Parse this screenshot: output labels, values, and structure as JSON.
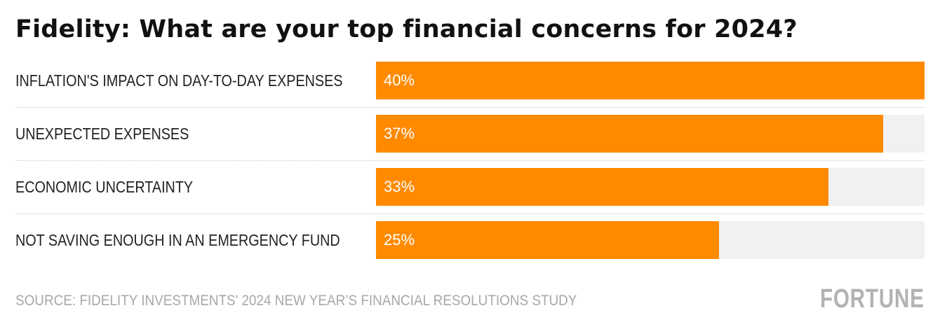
{
  "title": "Fidelity: What are your top financial concerns for 2024?",
  "source": "SOURCE: FIDELITY INVESTMENTS' 2024 NEW YEAR’S FINANCIAL RESOLUTIONS STUDY",
  "logo": "FORTUNE",
  "colors": {
    "bar": "#ff8a00",
    "track": "#f1f1f1",
    "source": "#a8a8a8"
  },
  "chart_data": {
    "type": "bar",
    "orientation": "horizontal",
    "categories": [
      "INFLATION'S IMPACT ON DAY-TO-DAY EXPENSES",
      "UNEXPECTED EXPENSES",
      "ECONOMIC UNCERTAINTY",
      "NOT SAVING ENOUGH IN AN EMERGENCY FUND"
    ],
    "values": [
      40,
      37,
      33,
      25
    ],
    "value_labels": [
      "40%",
      "37%",
      "33%",
      "25%"
    ],
    "unit": "%",
    "xlim": [
      0,
      40
    ],
    "grid": false,
    "legend": "none"
  }
}
